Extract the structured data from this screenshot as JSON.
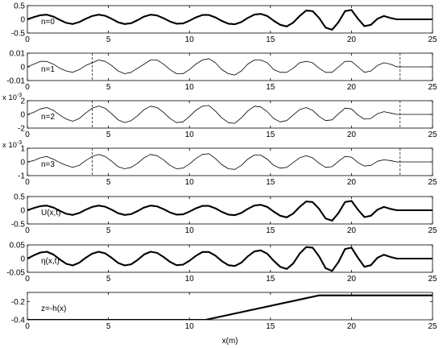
{
  "chart_data": {
    "type": "line",
    "xlabel": "x(m)",
    "xlim": [
      0,
      25
    ],
    "xticks": [
      0,
      5,
      10,
      15,
      20,
      25
    ],
    "grid": false,
    "panels": [
      {
        "label": "n=0",
        "multiplier": "",
        "ylim": [
          -0.5,
          0.5
        ],
        "yticks": [
          -0.5,
          0,
          0.5
        ],
        "ytick_labels": [
          "-0.5",
          "0",
          "0.5"
        ],
        "dashed_x": [],
        "thick": true,
        "series": [
          {
            "x": [
              0,
              0.4,
              0.8,
              1.2,
              1.6,
              2.0,
              2.4,
              2.8,
              3.2,
              3.6,
              4.0,
              4.4,
              4.8,
              5.2,
              5.6,
              6.0,
              6.4,
              6.8,
              7.2,
              7.6,
              8.0,
              8.4,
              8.8,
              9.2,
              9.6,
              10.0,
              10.4,
              10.8,
              11.2,
              11.6,
              12.0,
              12.4,
              12.8,
              13.2,
              13.6,
              14.0,
              14.4,
              14.8,
              15.2,
              15.6,
              16.0,
              16.4,
              16.8,
              17.2,
              17.6,
              18.0,
              18.4,
              18.8,
              19.2,
              19.6,
              20.0,
              20.4,
              20.8,
              21.2,
              21.6,
              22.0,
              22.4,
              22.8,
              23.2,
              23.6,
              24.0,
              24.4,
              24.8,
              25.0
            ],
            "y": [
              0.0,
              0.08,
              0.15,
              0.17,
              0.1,
              -0.02,
              -0.13,
              -0.17,
              -0.1,
              0.02,
              0.12,
              0.17,
              0.13,
              0.02,
              -0.11,
              -0.17,
              -0.14,
              -0.03,
              0.1,
              0.17,
              0.14,
              0.04,
              -0.08,
              -0.16,
              -0.15,
              -0.05,
              0.07,
              0.16,
              0.16,
              0.07,
              -0.06,
              -0.16,
              -0.18,
              -0.1,
              0.05,
              0.17,
              0.2,
              0.12,
              -0.05,
              -0.2,
              -0.26,
              -0.12,
              0.12,
              0.32,
              0.3,
              0.05,
              -0.3,
              -0.38,
              -0.1,
              0.3,
              0.34,
              0.02,
              -0.25,
              -0.2,
              0.02,
              0.12,
              0.05,
              0.0,
              0.0,
              0.0,
              0.0,
              0.0,
              0.0,
              0.0
            ]
          }
        ]
      },
      {
        "label": "n=1",
        "multiplier": "",
        "ylim": [
          -0.01,
          0.01
        ],
        "yticks": [
          -0.01,
          0,
          0.01
        ],
        "ytick_labels": [
          "-0.01",
          "0",
          "0.01"
        ],
        "dashed_x": [
          4,
          23
        ],
        "thick": false,
        "series": [
          {
            "x": [
              0,
              0.4,
              0.8,
              1.2,
              1.6,
              2.0,
              2.4,
              2.8,
              3.2,
              3.6,
              4.0,
              4.4,
              4.8,
              5.2,
              5.6,
              6.0,
              6.4,
              6.8,
              7.2,
              7.6,
              8.0,
              8.4,
              8.8,
              9.2,
              9.6,
              10.0,
              10.4,
              10.8,
              11.2,
              11.6,
              12.0,
              12.4,
              12.8,
              13.2,
              13.6,
              14.0,
              14.4,
              14.8,
              15.2,
              15.6,
              16.0,
              16.4,
              16.8,
              17.2,
              17.6,
              18.0,
              18.4,
              18.8,
              19.2,
              19.6,
              20.0,
              20.4,
              20.8,
              21.2,
              21.6,
              22.0,
              22.4,
              22.8,
              23.2,
              23.6,
              24.0,
              24.4,
              24.8,
              25.0
            ],
            "y": [
              0.0,
              0.002,
              0.004,
              0.004,
              0.002,
              -0.001,
              -0.003,
              -0.004,
              -0.002,
              0.001,
              0.003,
              0.005,
              0.004,
              0.001,
              -0.003,
              -0.005,
              -0.004,
              -0.001,
              0.002,
              0.005,
              0.005,
              0.002,
              -0.002,
              -0.005,
              -0.005,
              -0.002,
              0.002,
              0.005,
              0.006,
              0.003,
              -0.002,
              -0.005,
              -0.006,
              -0.003,
              0.002,
              0.005,
              0.005,
              0.003,
              -0.002,
              -0.004,
              -0.004,
              -0.001,
              0.003,
              0.004,
              0.003,
              -0.001,
              -0.004,
              -0.004,
              0.0,
              0.004,
              0.004,
              0.0,
              -0.004,
              -0.003,
              0.001,
              0.003,
              0.002,
              0.0,
              0.0,
              0.0,
              0.0,
              0.0,
              0.0,
              0.0
            ]
          }
        ]
      },
      {
        "label": "n=2",
        "multiplier": "x 10",
        "multiplier_exp": "-3",
        "ylim": [
          -2,
          2
        ],
        "yticks": [
          -2,
          0,
          2
        ],
        "ytick_labels": [
          "-2",
          "0",
          "2"
        ],
        "dashed_x": [
          4,
          23
        ],
        "thick": false,
        "series": [
          {
            "x": [
              0,
              0.4,
              0.8,
              1.2,
              1.6,
              2.0,
              2.4,
              2.8,
              3.2,
              3.6,
              4.0,
              4.4,
              4.8,
              5.2,
              5.6,
              6.0,
              6.4,
              6.8,
              7.2,
              7.6,
              8.0,
              8.4,
              8.8,
              9.2,
              9.6,
              10.0,
              10.4,
              10.8,
              11.2,
              11.6,
              12.0,
              12.4,
              12.8,
              13.2,
              13.6,
              14.0,
              14.4,
              14.8,
              15.2,
              15.6,
              16.0,
              16.4,
              16.8,
              17.2,
              17.6,
              18.0,
              18.4,
              18.8,
              19.2,
              19.6,
              20.0,
              20.4,
              20.8,
              21.2,
              21.6,
              22.0,
              22.4,
              22.8,
              23.2,
              23.6,
              24.0,
              24.4,
              24.8,
              25.0
            ],
            "y": [
              0.0,
              0.3,
              0.8,
              1.0,
              0.6,
              -0.1,
              -0.7,
              -1.0,
              -0.6,
              0.2,
              0.9,
              1.2,
              0.9,
              0.1,
              -0.8,
              -1.2,
              -0.9,
              -0.2,
              0.7,
              1.2,
              1.0,
              0.3,
              -0.6,
              -1.2,
              -1.1,
              -0.3,
              0.6,
              1.2,
              1.3,
              0.5,
              -0.5,
              -1.2,
              -1.3,
              -0.5,
              0.5,
              1.2,
              1.1,
              0.4,
              -0.6,
              -1.1,
              -0.9,
              -0.1,
              0.7,
              1.0,
              0.6,
              -0.3,
              -0.9,
              -0.8,
              0.1,
              0.9,
              0.8,
              -0.1,
              -0.7,
              -0.6,
              0.1,
              0.4,
              0.2,
              0.0,
              0.0,
              0.0,
              0.0,
              0.0,
              0.0,
              0.0
            ]
          }
        ]
      },
      {
        "label": "n=3",
        "multiplier": "x 10",
        "multiplier_exp": "-3",
        "ylim": [
          -1,
          1
        ],
        "yticks": [
          -1,
          0,
          1
        ],
        "ytick_labels": [
          "-1",
          "0",
          "1"
        ],
        "dashed_x": [
          4,
          23
        ],
        "thick": false,
        "series": [
          {
            "x": [
              0,
              0.4,
              0.8,
              1.2,
              1.6,
              2.0,
              2.4,
              2.8,
              3.2,
              3.6,
              4.0,
              4.4,
              4.8,
              5.2,
              5.6,
              6.0,
              6.4,
              6.8,
              7.2,
              7.6,
              8.0,
              8.4,
              8.8,
              9.2,
              9.6,
              10.0,
              10.4,
              10.8,
              11.2,
              11.6,
              12.0,
              12.4,
              12.8,
              13.2,
              13.6,
              14.0,
              14.4,
              14.8,
              15.2,
              15.6,
              16.0,
              16.4,
              16.8,
              17.2,
              17.6,
              18.0,
              18.4,
              18.8,
              19.2,
              19.6,
              20.0,
              20.4,
              20.8,
              21.2,
              21.6,
              22.0,
              22.4,
              22.8,
              23.2,
              23.6,
              24.0,
              24.4,
              24.8,
              25.0
            ],
            "y": [
              0.0,
              0.1,
              0.3,
              0.4,
              0.2,
              -0.05,
              -0.25,
              -0.4,
              -0.25,
              0.1,
              0.4,
              0.55,
              0.4,
              0.05,
              -0.35,
              -0.5,
              -0.4,
              -0.1,
              0.3,
              0.55,
              0.45,
              0.15,
              -0.25,
              -0.5,
              -0.45,
              -0.15,
              0.25,
              0.55,
              0.6,
              0.25,
              -0.2,
              -0.5,
              -0.55,
              -0.25,
              0.2,
              0.5,
              0.5,
              0.2,
              -0.25,
              -0.45,
              -0.4,
              -0.05,
              0.3,
              0.45,
              0.3,
              -0.1,
              -0.4,
              -0.35,
              0.05,
              0.4,
              0.35,
              -0.05,
              -0.3,
              -0.25,
              0.05,
              0.15,
              0.1,
              0.0,
              0.0,
              0.0,
              0.0,
              0.0,
              0.0,
              0.0
            ]
          }
        ]
      },
      {
        "label": "U(x,t)",
        "multiplier": "",
        "ylim": [
          -0.5,
          0.5
        ],
        "yticks": [
          -0.5,
          0,
          0.5
        ],
        "ytick_labels": [
          "-0.5",
          "0",
          "0.5"
        ],
        "dashed_x": [],
        "thick": true,
        "series": [
          {
            "x": [
              0,
              0.4,
              0.8,
              1.2,
              1.6,
              2.0,
              2.4,
              2.8,
              3.2,
              3.6,
              4.0,
              4.4,
              4.8,
              5.2,
              5.6,
              6.0,
              6.4,
              6.8,
              7.2,
              7.6,
              8.0,
              8.4,
              8.8,
              9.2,
              9.6,
              10.0,
              10.4,
              10.8,
              11.2,
              11.6,
              12.0,
              12.4,
              12.8,
              13.2,
              13.6,
              14.0,
              14.4,
              14.8,
              15.2,
              15.6,
              16.0,
              16.4,
              16.8,
              17.2,
              17.6,
              18.0,
              18.4,
              18.8,
              19.2,
              19.6,
              20.0,
              20.4,
              20.8,
              21.2,
              21.6,
              22.0,
              22.4,
              22.8,
              23.2,
              23.6,
              24.0,
              24.4,
              24.8,
              25.0
            ],
            "y": [
              0.0,
              0.08,
              0.15,
              0.17,
              0.1,
              -0.02,
              -0.13,
              -0.17,
              -0.1,
              0.02,
              0.12,
              0.17,
              0.13,
              0.02,
              -0.11,
              -0.17,
              -0.14,
              -0.03,
              0.1,
              0.17,
              0.14,
              0.04,
              -0.08,
              -0.16,
              -0.15,
              -0.05,
              0.07,
              0.16,
              0.16,
              0.07,
              -0.06,
              -0.16,
              -0.18,
              -0.1,
              0.05,
              0.17,
              0.2,
              0.12,
              -0.05,
              -0.2,
              -0.26,
              -0.12,
              0.12,
              0.32,
              0.3,
              0.05,
              -0.3,
              -0.38,
              -0.1,
              0.3,
              0.34,
              0.02,
              -0.25,
              -0.2,
              0.02,
              0.12,
              0.05,
              0.0,
              0.0,
              0.0,
              0.0,
              0.0,
              0.0,
              0.0
            ]
          }
        ]
      },
      {
        "label": "η(x,t)",
        "multiplier": "",
        "ylim": [
          -0.05,
          0.05
        ],
        "yticks": [
          -0.05,
          0,
          0.05
        ],
        "ytick_labels": [
          "-0.05",
          "0",
          "0.05"
        ],
        "dashed_x": [],
        "thick": true,
        "series": [
          {
            "x": [
              0,
              0.4,
              0.8,
              1.2,
              1.6,
              2.0,
              2.4,
              2.8,
              3.2,
              3.6,
              4.0,
              4.4,
              4.8,
              5.2,
              5.6,
              6.0,
              6.4,
              6.8,
              7.2,
              7.6,
              8.0,
              8.4,
              8.8,
              9.2,
              9.6,
              10.0,
              10.4,
              10.8,
              11.2,
              11.6,
              12.0,
              12.4,
              12.8,
              13.2,
              13.6,
              14.0,
              14.4,
              14.8,
              15.2,
              15.6,
              16.0,
              16.4,
              16.8,
              17.2,
              17.6,
              18.0,
              18.4,
              18.8,
              19.2,
              19.6,
              20.0,
              20.4,
              20.8,
              21.2,
              21.6,
              22.0,
              22.4,
              22.8,
              23.2,
              23.6,
              24.0,
              24.4,
              24.8,
              25.0
            ],
            "y": [
              0.0,
              0.012,
              0.022,
              0.025,
              0.015,
              -0.003,
              -0.019,
              -0.025,
              -0.015,
              0.003,
              0.018,
              0.025,
              0.019,
              0.003,
              -0.016,
              -0.025,
              -0.021,
              -0.005,
              0.015,
              0.025,
              0.021,
              0.006,
              -0.012,
              -0.024,
              -0.022,
              -0.008,
              0.01,
              0.024,
              0.024,
              0.011,
              -0.009,
              -0.024,
              -0.027,
              -0.015,
              0.008,
              0.026,
              0.03,
              0.018,
              -0.008,
              -0.03,
              -0.038,
              -0.018,
              0.018,
              0.042,
              0.04,
              0.008,
              -0.035,
              -0.045,
              -0.012,
              0.035,
              0.04,
              0.003,
              -0.03,
              -0.024,
              0.003,
              0.014,
              0.006,
              0.0,
              0.0,
              0.0,
              0.0,
              0.0,
              0.0,
              0.0
            ]
          }
        ]
      },
      {
        "label": "z=-h(x)",
        "multiplier": "",
        "ylim": [
          -0.4,
          -0.1
        ],
        "yticks": [
          -0.4,
          -0.2
        ],
        "ytick_labels": [
          "-0.4",
          "-0.2"
        ],
        "dashed_x": [],
        "thick": true,
        "series": [
          {
            "x": [
              0,
              11,
              18,
              25
            ],
            "y": [
              -0.4,
              -0.4,
              -0.133,
              -0.133
            ]
          }
        ]
      }
    ]
  }
}
